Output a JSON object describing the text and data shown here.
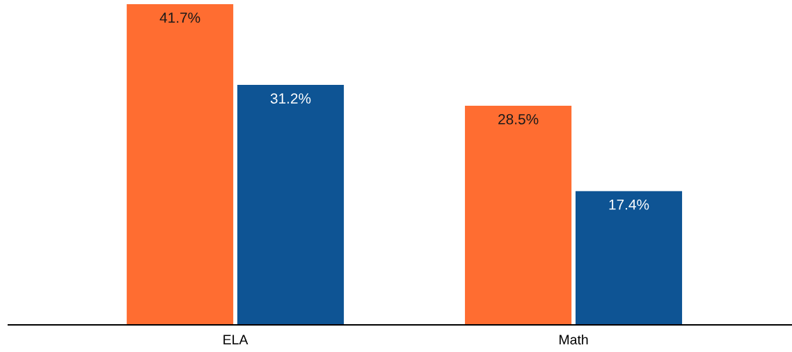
{
  "chart_data": {
    "type": "bar",
    "categories": [
      "ELA",
      "Math"
    ],
    "series": [
      {
        "color": "#ff6d31",
        "values": [
          41.7,
          28.5
        ],
        "value_labels": [
          "41.7%",
          "28.5%"
        ]
      },
      {
        "color": "#0e5494",
        "values": [
          31.2,
          17.4
        ],
        "value_labels": [
          "31.2%",
          "17.4%"
        ]
      }
    ],
    "grid": false,
    "legend": false
  }
}
